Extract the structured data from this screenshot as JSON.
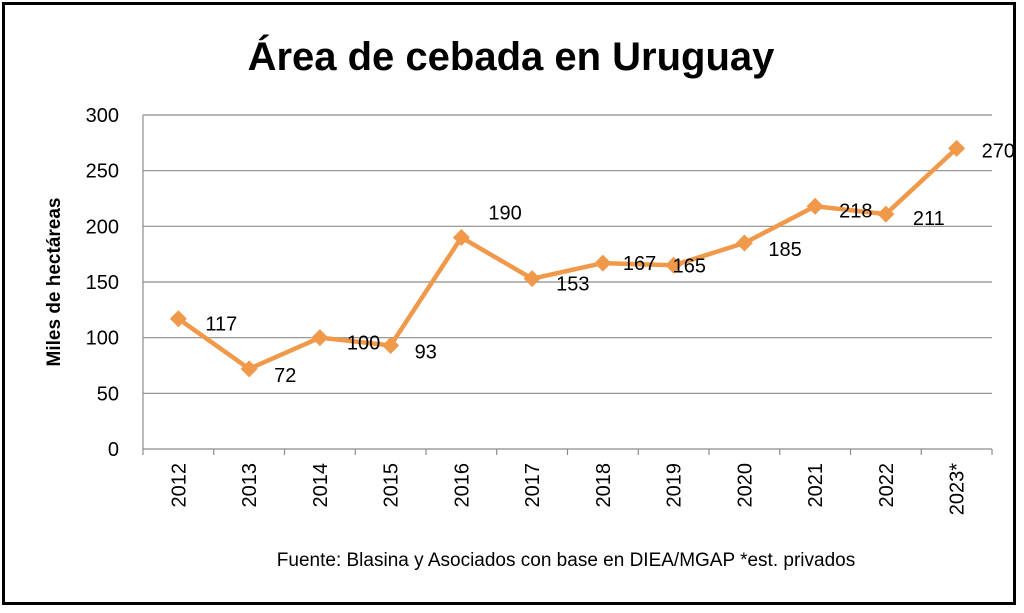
{
  "chart_data": {
    "type": "line",
    "title": "Área de cebada en Uruguay",
    "ylabel": "Miles de hectáreas",
    "xlabel": "",
    "categories": [
      "2012",
      "2013",
      "2014",
      "2015",
      "2016",
      "2017",
      "2018",
      "2019",
      "2020",
      "2021",
      "2022",
      "2023*"
    ],
    "series": [
      {
        "values": [
          117,
          72,
          100,
          93,
          190,
          153,
          167,
          165,
          185,
          218,
          211,
          270
        ]
      }
    ],
    "data_labels": [
      "117",
      "72",
      "100",
      "93",
      "190",
      "153",
      "167",
      "165",
      "185",
      "218",
      "211",
      "270"
    ],
    "ylim": [
      0,
      300
    ],
    "yticks": [
      0,
      50,
      100,
      150,
      200,
      250,
      300
    ],
    "grid": true,
    "legend": "none",
    "line_color": "#F0994A",
    "source": "Fuente: Blasina y Asociados con base en DIEA/MGAP *est. privados"
  }
}
